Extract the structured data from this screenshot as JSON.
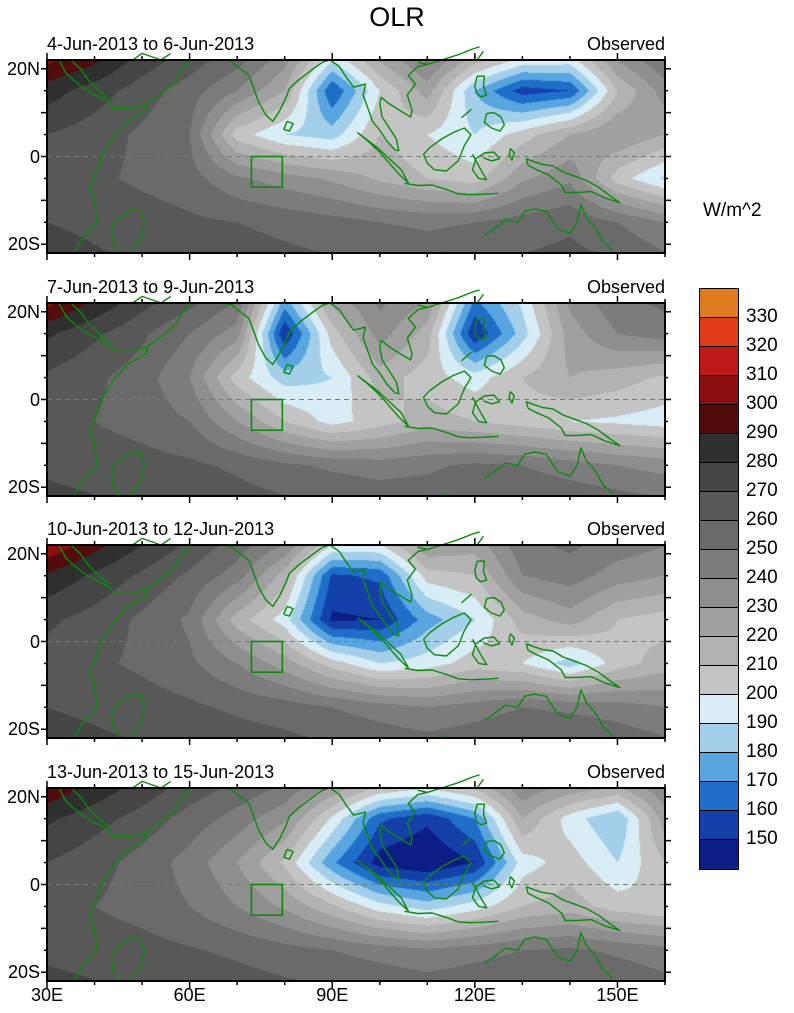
{
  "title": "OLR",
  "colorbar": {
    "label": "W/m^2",
    "tick_labels": [
      "330",
      "320",
      "310",
      "300",
      "290",
      "280",
      "270",
      "260",
      "250",
      "240",
      "230",
      "220",
      "210",
      "200",
      "190",
      "180",
      "170",
      "160",
      "150"
    ],
    "levels": [
      150,
      160,
      170,
      180,
      190,
      200,
      210,
      220,
      230,
      240,
      250,
      260,
      270,
      280,
      290,
      300,
      310,
      320,
      330
    ],
    "colors": [
      "#0c1d85",
      "#1441a8",
      "#1f6fc8",
      "#58a5e0",
      "#a4cfea",
      "#d8edf5",
      "#c4c4c4",
      "#b2b2b2",
      "#a0a0a0",
      "#8e8e8e",
      "#7c7c7c",
      "#6a6a6a",
      "#585858",
      "#454545",
      "#2f2f2f",
      "#520c0c",
      "#8a1010",
      "#c01717",
      "#e03c1a",
      "#dd7d1f"
    ]
  },
  "axes": {
    "x_tick_labels": [
      "30E",
      "60E",
      "90E",
      "120E",
      "150E"
    ],
    "x_tick_lons": [
      30,
      60,
      90,
      120,
      150
    ],
    "y_tick_labels": [
      "20N",
      "0",
      "20S"
    ],
    "y_tick_lats": [
      20,
      0,
      -20
    ],
    "lon_range": [
      30,
      160
    ],
    "lat_range": [
      -22,
      22
    ]
  },
  "map": {
    "coast_color": "#0c8a0c",
    "box_color": "#0c8a0c",
    "equator_dash_color": "#708070",
    "frame_color": "#000000",
    "region_box": {
      "lon_min": 73,
      "lon_max": 79.5,
      "lat_min": -7,
      "lat_max": 0
    }
  },
  "chart_data": {
    "type": "heatmap",
    "title": "OLR",
    "units": "W/m^2",
    "grid_lons": [
      30,
      40,
      50,
      60,
      70,
      80,
      90,
      100,
      110,
      120,
      130,
      140,
      150,
      160
    ],
    "grid_lats": [
      25,
      15,
      5,
      -5,
      -15,
      -25
    ],
    "panels": [
      {
        "date_range": "4-Jun-2013 to 6-Jun-2013",
        "source": "Observed",
        "values": [
          [
            310,
            300,
            280,
            270,
            260,
            240,
            205,
            230,
            250,
            230,
            215,
            210,
            240,
            255
          ],
          [
            285,
            275,
            265,
            255,
            240,
            220,
            160,
            200,
            225,
            180,
            155,
            160,
            210,
            235
          ],
          [
            270,
            265,
            258,
            250,
            205,
            190,
            185,
            210,
            200,
            190,
            205,
            220,
            230,
            220
          ],
          [
            265,
            262,
            258,
            254,
            242,
            235,
            228,
            218,
            210,
            205,
            228,
            238,
            205,
            188
          ],
          [
            270,
            268,
            265,
            262,
            260,
            257,
            254,
            250,
            248,
            250,
            255,
            258,
            250,
            240
          ],
          [
            275,
            272,
            270,
            268,
            266,
            264,
            262,
            260,
            258,
            260,
            262,
            264,
            262,
            255
          ]
        ]
      },
      {
        "date_range": "7-Jun-2013 to 9-Jun-2013",
        "source": "Observed",
        "values": [
          [
            312,
            295,
            278,
            268,
            255,
            185,
            230,
            245,
            235,
            175,
            195,
            235,
            250,
            255
          ],
          [
            282,
            272,
            262,
            250,
            235,
            150,
            205,
            235,
            215,
            150,
            185,
            225,
            240,
            245
          ],
          [
            268,
            262,
            255,
            240,
            205,
            185,
            190,
            215,
            205,
            195,
            210,
            220,
            215,
            208
          ],
          [
            262,
            260,
            256,
            250,
            230,
            210,
            196,
            205,
            215,
            210,
            205,
            200,
            198,
            195
          ],
          [
            268,
            266,
            264,
            262,
            258,
            252,
            248,
            245,
            248,
            252,
            250,
            245,
            240,
            236
          ],
          [
            274,
            272,
            270,
            268,
            266,
            264,
            262,
            260,
            258,
            260,
            262,
            260,
            258,
            255
          ]
        ]
      },
      {
        "date_range": "10-Jun-2013 to 12-Jun-2013",
        "source": "Observed",
        "values": [
          [
            318,
            300,
            285,
            272,
            260,
            250,
            218,
            215,
            240,
            230,
            250,
            255,
            250,
            245
          ],
          [
            288,
            278,
            268,
            258,
            245,
            215,
            158,
            162,
            205,
            210,
            240,
            245,
            235,
            230
          ],
          [
            272,
            266,
            258,
            248,
            215,
            195,
            148,
            150,
            175,
            190,
            215,
            225,
            210,
            205
          ],
          [
            266,
            262,
            258,
            252,
            240,
            225,
            205,
            190,
            195,
            205,
            200,
            185,
            205,
            215
          ],
          [
            270,
            268,
            265,
            262,
            258,
            255,
            250,
            245,
            240,
            245,
            250,
            248,
            245,
            240
          ],
          [
            275,
            273,
            271,
            269,
            267,
            265,
            262,
            260,
            258,
            260,
            262,
            263,
            260,
            255
          ]
        ]
      },
      {
        "date_range": "13-Jun-2013 to 15-Jun-2013",
        "source": "Observed",
        "values": [
          [
            305,
            292,
            280,
            270,
            262,
            255,
            240,
            228,
            222,
            230,
            245,
            240,
            235,
            245
          ],
          [
            282,
            274,
            266,
            256,
            246,
            232,
            198,
            162,
            152,
            170,
            220,
            195,
            180,
            225
          ],
          [
            270,
            264,
            256,
            246,
            230,
            208,
            172,
            145,
            140,
            150,
            195,
            205,
            190,
            210
          ],
          [
            264,
            260,
            256,
            250,
            240,
            228,
            212,
            194,
            185,
            195,
            210,
            215,
            205,
            200
          ],
          [
            268,
            266,
            264,
            261,
            258,
            254,
            250,
            246,
            242,
            246,
            250,
            252,
            248,
            244
          ],
          [
            274,
            272,
            270,
            268,
            266,
            264,
            262,
            260,
            258,
            260,
            262,
            263,
            261,
            256
          ]
        ]
      }
    ]
  }
}
